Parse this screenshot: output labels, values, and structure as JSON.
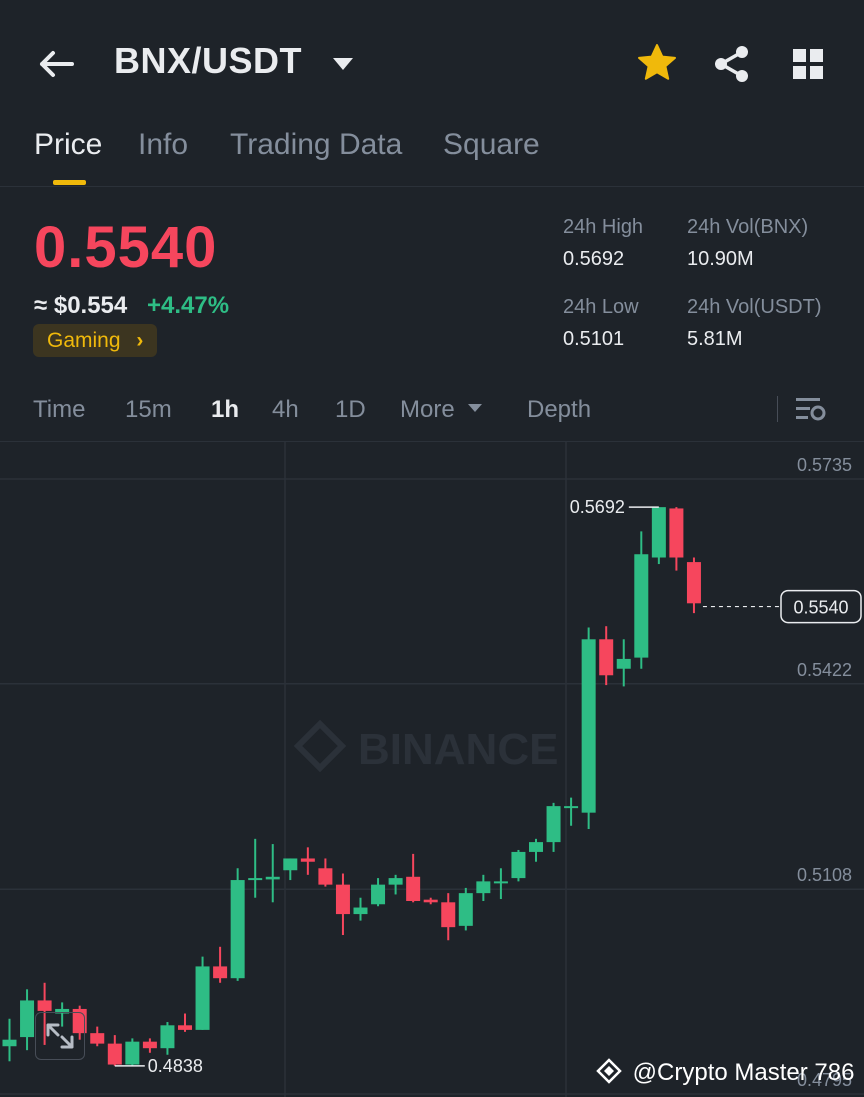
{
  "header": {
    "pair": "BNX/USDT"
  },
  "icons": {
    "back": "arrow-left-icon",
    "favorite": "star-icon",
    "share": "share-icon",
    "more": "grid-icon"
  },
  "colors": {
    "background": "#1e2329",
    "up": "#2ebd85",
    "down": "#f6465d",
    "accent": "#f0b90b",
    "muted": "#848e9c"
  },
  "tabs": [
    {
      "label": "Price",
      "active": true
    },
    {
      "label": "Info",
      "active": false
    },
    {
      "label": "Trading Data",
      "active": false
    },
    {
      "label": "Square",
      "active": false
    }
  ],
  "ticker": {
    "last_price": "0.5540",
    "fiat_price": "≈ $0.554",
    "change_pct": "+4.47%",
    "category": "Gaming",
    "high_label": "24h High",
    "high_value": "0.5692",
    "low_label": "24h Low",
    "low_value": "0.5101",
    "vol_base_label": "24h Vol(BNX)",
    "vol_base_value": "10.90M",
    "vol_quote_label": "24h Vol(USDT)",
    "vol_quote_value": "5.81M"
  },
  "intervals": [
    {
      "label": "Time",
      "active": false
    },
    {
      "label": "15m",
      "active": false
    },
    {
      "label": "1h",
      "active": true
    },
    {
      "label": "4h",
      "active": false
    },
    {
      "label": "1D",
      "active": false
    },
    {
      "label": "More",
      "active": false
    },
    {
      "label": "Depth",
      "active": false
    }
  ],
  "chart_data": {
    "type": "candlestick",
    "interval": "1h",
    "y_ticks": [
      "0.5735",
      "0.5422",
      "0.5108",
      "0.4795"
    ],
    "ylim": [
      0.4795,
      0.5735
    ],
    "grid": true,
    "high_marker": "0.5692",
    "low_marker": "0.4838",
    "current_price": "0.5540",
    "watermark": "BINANCE",
    "candles": [
      {
        "o": 0.4868,
        "h": 0.491,
        "l": 0.4845,
        "c": 0.4878
      },
      {
        "o": 0.4882,
        "h": 0.4955,
        "l": 0.4862,
        "c": 0.4938
      },
      {
        "o": 0.4938,
        "h": 0.4965,
        "l": 0.487,
        "c": 0.4922
      },
      {
        "o": 0.4918,
        "h": 0.4935,
        "l": 0.4898,
        "c": 0.4925
      },
      {
        "o": 0.4925,
        "h": 0.493,
        "l": 0.4878,
        "c": 0.4888
      },
      {
        "o": 0.4888,
        "h": 0.4898,
        "l": 0.4868,
        "c": 0.4872
      },
      {
        "o": 0.4872,
        "h": 0.4885,
        "l": 0.4838,
        "c": 0.484
      },
      {
        "o": 0.484,
        "h": 0.488,
        "l": 0.4838,
        "c": 0.4875
      },
      {
        "o": 0.4875,
        "h": 0.488,
        "l": 0.4858,
        "c": 0.4865
      },
      {
        "o": 0.4865,
        "h": 0.4905,
        "l": 0.4855,
        "c": 0.49
      },
      {
        "o": 0.49,
        "h": 0.4918,
        "l": 0.489,
        "c": 0.4893
      },
      {
        "o": 0.4893,
        "h": 0.5005,
        "l": 0.4893,
        "c": 0.499
      },
      {
        "o": 0.499,
        "h": 0.502,
        "l": 0.4965,
        "c": 0.4972
      },
      {
        "o": 0.4972,
        "h": 0.514,
        "l": 0.4968,
        "c": 0.5122
      },
      {
        "o": 0.5122,
        "h": 0.5185,
        "l": 0.5095,
        "c": 0.5125
      },
      {
        "o": 0.5123,
        "h": 0.5177,
        "l": 0.5088,
        "c": 0.5127
      },
      {
        "o": 0.5137,
        "h": 0.5155,
        "l": 0.5122,
        "c": 0.5155
      },
      {
        "o": 0.5155,
        "h": 0.5172,
        "l": 0.513,
        "c": 0.515
      },
      {
        "o": 0.514,
        "h": 0.5155,
        "l": 0.5112,
        "c": 0.5115
      },
      {
        "o": 0.5115,
        "h": 0.5132,
        "l": 0.5038,
        "c": 0.507
      },
      {
        "o": 0.507,
        "h": 0.5095,
        "l": 0.506,
        "c": 0.508
      },
      {
        "o": 0.5085,
        "h": 0.5125,
        "l": 0.5082,
        "c": 0.5115
      },
      {
        "o": 0.5115,
        "h": 0.513,
        "l": 0.51,
        "c": 0.5125
      },
      {
        "o": 0.5127,
        "h": 0.5162,
        "l": 0.5088,
        "c": 0.509
      },
      {
        "o": 0.5092,
        "h": 0.5095,
        "l": 0.5085,
        "c": 0.5088
      },
      {
        "o": 0.5088,
        "h": 0.5102,
        "l": 0.503,
        "c": 0.505
      },
      {
        "o": 0.5052,
        "h": 0.511,
        "l": 0.5045,
        "c": 0.5102
      },
      {
        "o": 0.5102,
        "h": 0.513,
        "l": 0.509,
        "c": 0.512
      },
      {
        "o": 0.512,
        "h": 0.514,
        "l": 0.5093,
        "c": 0.512
      },
      {
        "o": 0.5125,
        "h": 0.5168,
        "l": 0.512,
        "c": 0.5165
      },
      {
        "o": 0.5165,
        "h": 0.5185,
        "l": 0.515,
        "c": 0.518
      },
      {
        "o": 0.518,
        "h": 0.524,
        "l": 0.5165,
        "c": 0.5235
      },
      {
        "o": 0.5235,
        "h": 0.5248,
        "l": 0.5205,
        "c": 0.5235
      },
      {
        "o": 0.5225,
        "h": 0.5508,
        "l": 0.52,
        "c": 0.549
      },
      {
        "o": 0.549,
        "h": 0.551,
        "l": 0.542,
        "c": 0.5435
      },
      {
        "o": 0.5445,
        "h": 0.549,
        "l": 0.5418,
        "c": 0.546
      },
      {
        "o": 0.5462,
        "h": 0.5655,
        "l": 0.5445,
        "c": 0.562
      },
      {
        "o": 0.5615,
        "h": 0.5692,
        "l": 0.5605,
        "c": 0.5692
      },
      {
        "o": 0.569,
        "h": 0.5692,
        "l": 0.5595,
        "c": 0.5615
      },
      {
        "o": 0.5608,
        "h": 0.5615,
        "l": 0.553,
        "c": 0.5545
      }
    ]
  },
  "watermark": "@Crypto Master 786"
}
